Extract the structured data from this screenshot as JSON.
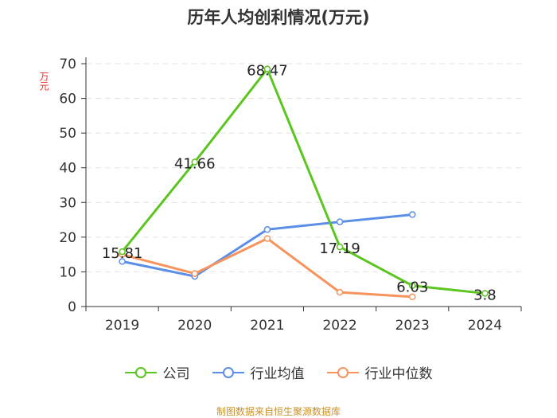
{
  "chart_data": {
    "type": "line",
    "title": "历年人均创利情况(万元)",
    "ylabel": "万元",
    "xlabel": "",
    "ylim": [
      0,
      70
    ],
    "yticks": [
      0,
      10,
      20,
      30,
      40,
      50,
      60,
      70
    ],
    "categories": [
      "2019",
      "2020",
      "2021",
      "2022",
      "2023",
      "2024"
    ],
    "grid": true,
    "legend_position": "bottom",
    "series": [
      {
        "name": "公司",
        "color": "#5cc51f",
        "values": [
          15.81,
          41.66,
          68.47,
          17.19,
          6.03,
          3.8
        ],
        "data_labels": [
          "15.81",
          "41.66",
          "68.47",
          "17.19",
          "6.03",
          "3.8"
        ]
      },
      {
        "name": "行业均值",
        "color": "#5b8ee6",
        "values": [
          13.0,
          8.7,
          22.2,
          24.4,
          26.5,
          null
        ]
      },
      {
        "name": "行业中位数",
        "color": "#f7935c",
        "values": [
          15.0,
          9.5,
          19.6,
          4.1,
          2.8,
          null
        ]
      }
    ]
  },
  "source": "制图数据来自恒生聚源数据库"
}
